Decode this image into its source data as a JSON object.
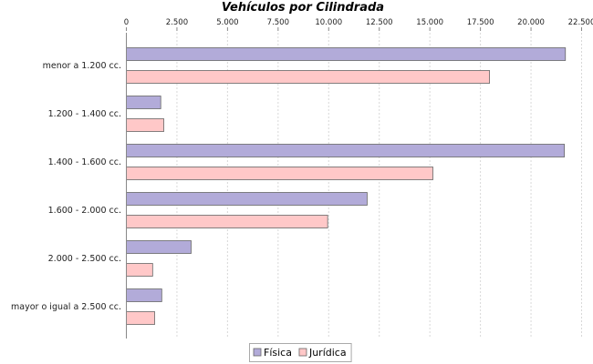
{
  "chart_data": {
    "type": "bar",
    "orientation": "horizontal",
    "title": "Vehículos por Cilindrada",
    "xlabel": "",
    "ylabel": "",
    "xlim": [
      0,
      22500
    ],
    "x_ticks": [
      0,
      2500,
      5000,
      7500,
      10000,
      12500,
      15000,
      17500,
      20000,
      22500
    ],
    "x_tick_labels": [
      "0",
      "2.500",
      "5.000",
      "7.500",
      "10.000",
      "12.500",
      "15.000",
      "17.500",
      "20.000",
      "22.500"
    ],
    "x_axis_position": "top",
    "grid": true,
    "categories": [
      "menor a 1.200 cc.",
      "1.200 - 1.400 cc.",
      "1.400 - 1.600 cc.",
      "1.600 - 2.000 cc.",
      "2.000 - 2.500 cc.",
      "mayor o igual a 2.500 cc."
    ],
    "series": [
      {
        "name": "Física",
        "color": "#b2abd9",
        "values": [
          21700,
          1700,
          21650,
          11900,
          3200,
          1750
        ]
      },
      {
        "name": "Jurídica",
        "color": "#ffc8c8",
        "values": [
          17950,
          1850,
          15150,
          9950,
          1300,
          1400
        ]
      }
    ],
    "legend_position": "bottom"
  }
}
